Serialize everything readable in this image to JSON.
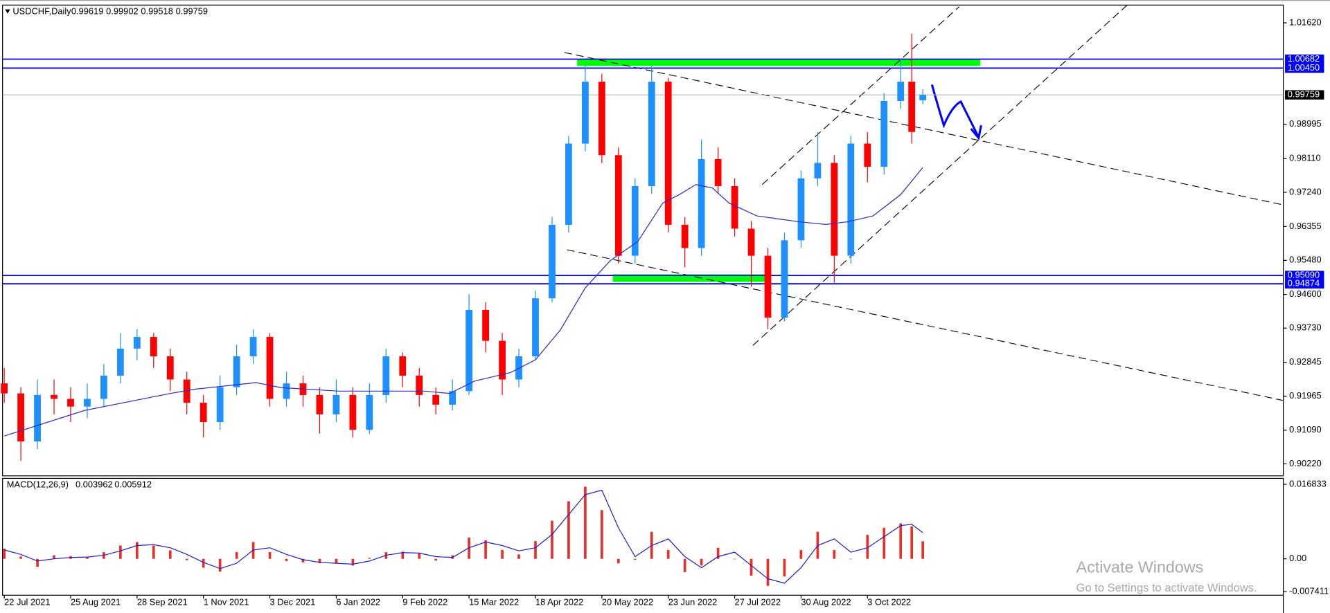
{
  "chart_data": [
    {
      "type": "candlestick",
      "title": "USDCHF,Daily",
      "x": [
        0,
        6,
        12,
        18,
        24,
        30,
        36,
        42,
        48,
        54,
        60,
        66,
        72,
        78,
        84,
        90,
        96,
        102,
        108,
        114,
        120,
        126,
        132,
        138,
        144,
        150,
        156,
        162,
        168,
        174,
        180,
        186,
        192,
        198,
        204,
        210,
        216,
        222,
        228,
        234,
        240,
        246,
        252,
        258,
        264,
        270,
        276,
        282,
        288,
        294,
        300,
        306,
        312,
        318,
        324,
        328,
        332
      ],
      "open": [
        0.923,
        0.9204,
        0.908,
        0.92,
        0.919,
        0.917,
        0.919,
        0.925,
        0.932,
        0.935,
        0.93,
        0.924,
        0.918,
        0.913,
        0.922,
        0.93,
        0.935,
        0.919,
        0.923,
        0.92,
        0.915,
        0.92,
        0.911,
        0.92,
        0.93,
        0.925,
        0.92,
        0.9175,
        0.921,
        0.942,
        0.934,
        0.924,
        0.93,
        0.945,
        0.964,
        0.985,
        1.001,
        0.982,
        0.956,
        0.974,
        1.001,
        0.964,
        0.958,
        0.981,
        0.974,
        0.963,
        0.956,
        0.94,
        0.96,
        0.976,
        0.98,
        0.956,
        0.985,
        0.979,
        0.996,
        1.001,
        0.99619
      ],
      "high": [
        0.927,
        0.922,
        0.924,
        0.924,
        0.922,
        0.923,
        0.928,
        0.936,
        0.937,
        0.936,
        0.932,
        0.926,
        0.92,
        0.925,
        0.933,
        0.937,
        0.936,
        0.926,
        0.925,
        0.922,
        0.924,
        0.922,
        0.923,
        0.932,
        0.931,
        0.927,
        0.922,
        0.924,
        0.946,
        0.944,
        0.936,
        0.932,
        0.947,
        0.966,
        0.987,
        1.005,
        1.003,
        0.984,
        0.976,
        1.005,
        1.002,
        0.966,
        0.986,
        0.984,
        0.976,
        0.965,
        0.958,
        0.962,
        0.978,
        0.988,
        0.982,
        0.987,
        0.988,
        0.998,
        1.007,
        1.0134,
        0.99902
      ],
      "low": [
        0.918,
        0.903,
        0.906,
        0.915,
        0.913,
        0.914,
        0.917,
        0.923,
        0.929,
        0.927,
        0.921,
        0.915,
        0.909,
        0.911,
        0.92,
        0.928,
        0.917,
        0.917,
        0.917,
        0.91,
        0.913,
        0.909,
        0.91,
        0.918,
        0.922,
        0.917,
        0.915,
        0.916,
        0.92,
        0.931,
        0.92,
        0.922,
        0.929,
        0.944,
        0.962,
        0.983,
        0.98,
        0.954,
        0.954,
        0.972,
        0.962,
        0.953,
        0.956,
        0.972,
        0.961,
        0.948,
        0.937,
        0.939,
        0.958,
        0.974,
        0.949,
        0.954,
        0.975,
        0.977,
        0.994,
        0.985,
        0.99518
      ],
      "close": [
        0.9204,
        0.908,
        0.92,
        0.919,
        0.917,
        0.919,
        0.925,
        0.932,
        0.935,
        0.93,
        0.924,
        0.918,
        0.913,
        0.922,
        0.93,
        0.935,
        0.919,
        0.923,
        0.92,
        0.915,
        0.92,
        0.911,
        0.92,
        0.93,
        0.925,
        0.92,
        0.9175,
        0.921,
        0.942,
        0.934,
        0.924,
        0.93,
        0.945,
        0.964,
        0.985,
        1.001,
        0.982,
        0.956,
        0.974,
        1.001,
        0.964,
        0.958,
        0.981,
        0.974,
        0.963,
        0.956,
        0.94,
        0.96,
        0.976,
        0.98,
        0.956,
        0.985,
        0.979,
        0.996,
        1.001,
        0.988,
        0.99759
      ],
      "up_color": "#1e90ff",
      "down_color": "#ff0000",
      "ma": {
        "color": "#2b2bd0",
        "x": [
          0,
          29,
          60,
          69,
          91,
          100,
          121,
          152,
          161,
          170,
          183,
          192,
          201,
          210,
          219,
          229,
          238,
          244,
          250,
          256,
          262,
          272,
          278,
          287,
          297,
          305,
          314,
          324,
          332
        ],
        "values": [
          0.9094,
          0.916,
          0.9204,
          0.9215,
          0.9232,
          0.9219,
          0.921,
          0.921,
          0.9204,
          0.9236,
          0.9258,
          0.9291,
          0.9368,
          0.9477,
          0.9547,
          0.9597,
          0.9696,
          0.9718,
          0.9744,
          0.9735,
          0.9696,
          0.9663,
          0.9657,
          0.9648,
          0.9641,
          0.9648,
          0.9663,
          0.9718,
          0.9788
        ]
      },
      "xlim": [
        0,
        462
      ],
      "ylim": [
        0.8991,
        1.0208
      ],
      "xticks": [
        {
          "value": 0,
          "label": "22 Jul 2021"
        },
        {
          "value": 24,
          "label": "25 Aug 2021"
        },
        {
          "value": 48,
          "label": "28 Sep 2021"
        },
        {
          "value": 72,
          "label": "1 Nov 2021"
        },
        {
          "value": 96,
          "label": "3 Dec 2021"
        },
        {
          "value": 120,
          "label": "6 Jan 2022"
        },
        {
          "value": 144,
          "label": "9 Feb 2022"
        },
        {
          "value": 168,
          "label": "15 Mar 2022"
        },
        {
          "value": 192,
          "label": "18 Apr 2022"
        },
        {
          "value": 216,
          "label": "20 May 2022"
        },
        {
          "value": 240,
          "label": "23 Jun 2022"
        },
        {
          "value": 264,
          "label": "27 Jul 2022"
        },
        {
          "value": 288,
          "label": "30 Aug 2022"
        },
        {
          "value": 312,
          "label": "3 Oct 2022"
        }
      ],
      "yticks": [
        {
          "value": 1.0162,
          "label": "1.01620"
        },
        0.98995,
        {
          "value": 0.9811,
          "label": "0.98110"
        },
        {
          "value": 0.9724,
          "label": "0.97240"
        },
        0.96355,
        {
          "value": 0.9548,
          "label": "0.95480"
        },
        {
          "value": 0.946,
          "label": "0.94600"
        },
        {
          "value": 0.9373,
          "label": "0.93730"
        },
        0.92845,
        0.91965,
        {
          "value": 0.9109,
          "label": "0.91090"
        },
        {
          "value": 0.9022,
          "label": "0.90220"
        }
      ],
      "levels": [
        1.00682,
        {
          "value": 1.0045,
          "label": "1.00450"
        },
        {
          "value": 0.9509,
          "label": "0.95090"
        },
        0.94874
      ],
      "level_color": "#0000ff"
    },
    {
      "type": "macd",
      "title": "MACD(12,26,9)",
      "histogram": [
        0.0023,
        0.0005,
        -0.0018,
        0.0008,
        0.0006,
        0.0004,
        0.0015,
        0.003,
        0.0038,
        0.003,
        0.0019,
        -0.0003,
        -0.002,
        -0.0029,
        0.0015,
        0.0038,
        0.0015,
        -0.0005,
        -0.0008,
        -0.001,
        -0.001,
        -0.0015,
        0.0002,
        0.0015,
        0.0016,
        0.0012,
        -0.0004,
        0.0008,
        0.0048,
        0.0042,
        0.002,
        0.001,
        0.004,
        0.0086,
        0.013,
        0.0163,
        0.011,
        -0.001,
        -0.0002,
        0.0061,
        0.002,
        -0.003,
        -0.0015,
        0.0025,
        0,
        -0.0038,
        -0.0061,
        -0.004,
        0.002,
        0.0061,
        0.002,
        0,
        0.0054,
        0.007,
        0.008,
        0.0073,
        0.003962
      ],
      "signal": [
        0.002,
        0.001,
        -0.0005,
        0,
        0.0003,
        0.0004,
        0.0008,
        0.0018,
        0.003,
        0.0032,
        0.0025,
        0.001,
        -0.0008,
        -0.0022,
        -0.001,
        0.002,
        0.0025,
        0.001,
        -0.0002,
        -0.0008,
        -0.001,
        -0.0012,
        -0.0005,
        0.0008,
        0.0014,
        0.0013,
        0.0005,
        0.0003,
        0.0025,
        0.0038,
        0.003,
        0.0018,
        0.0025,
        0.0055,
        0.01,
        0.0145,
        0.0155,
        0.007,
        0.0005,
        0.003,
        0.0045,
        0.0005,
        -0.002,
        0.0005,
        0.0015,
        -0.0015,
        -0.0045,
        -0.0055,
        -0.002,
        0.003,
        0.0045,
        0.0015,
        0.0025,
        0.005,
        0.0075,
        0.0078,
        0.005912
      ],
      "histogram_color": "#e8302a",
      "signal_color": "#1c1cdc",
      "ylim": [
        -0.00822,
        0.01817
      ],
      "yticks": [
        0.016833,
        {
          "value": 0,
          "label": "0.00"
        },
        -0.007411
      ]
    }
  ],
  "overlay": {
    "line1": "Activate Windows",
    "line2": "Go to Settings to activate Windows."
  }
}
